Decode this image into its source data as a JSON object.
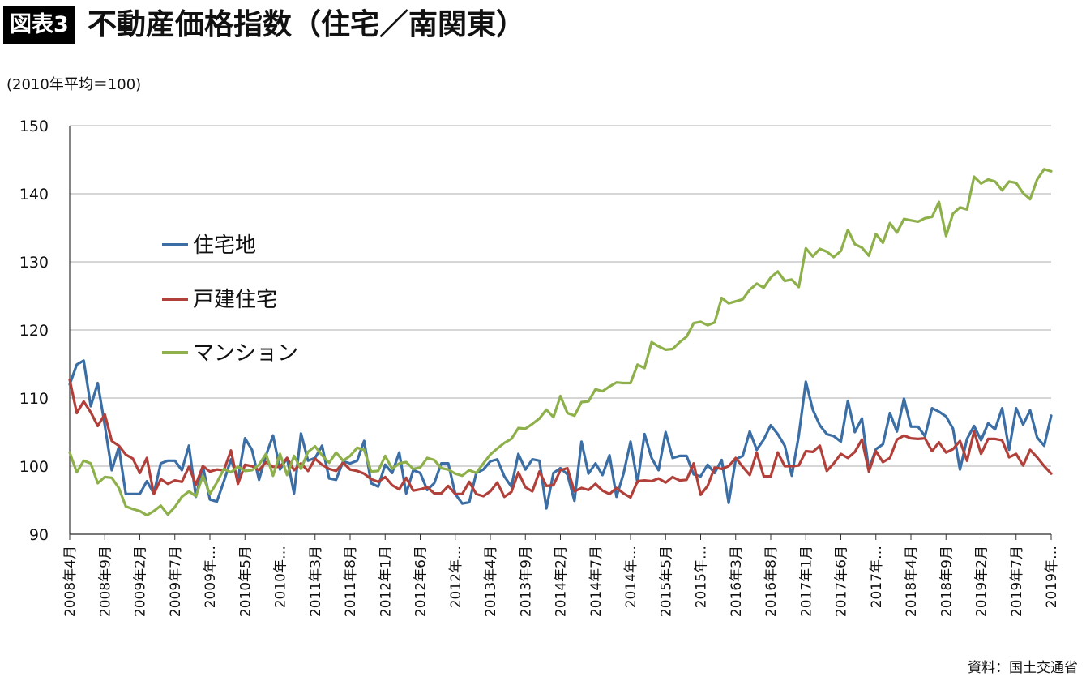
{
  "header": {
    "badge": "図表3",
    "title": "不動産価格指数（住宅／南関東）"
  },
  "footer": {
    "source": "資料：国土交通省"
  },
  "colors": {
    "series_1": "#3A6EA5",
    "series_2": "#B2403A",
    "series_3": "#8DB04A",
    "grid": "#bdbdbd"
  },
  "chart_data": {
    "type": "line",
    "title": "不動産価格指数（住宅／南関東）",
    "ylabel": "(2010年平均＝100)",
    "xlabel": "",
    "ylim": [
      90,
      150
    ],
    "yticks": [
      90,
      100,
      110,
      120,
      130,
      140,
      150
    ],
    "grid": true,
    "legend_position": "left-middle",
    "x_start": "2008年4月",
    "x_tick_labels": [
      "2008年4月",
      "2008年9月",
      "2009年2月",
      "2009年7月",
      "2009年…",
      "2010年5月",
      "2010年…",
      "2011年3月",
      "2011年8月",
      "2012年1月",
      "2012年6月",
      "2012年…",
      "2013年4月",
      "2013年9月",
      "2014年2月",
      "2014年7月",
      "2014年…",
      "2015年5月",
      "2015年…",
      "2016年3月",
      "2016年8月",
      "2017年1月",
      "2017年6月",
      "2017年…",
      "2018年4月",
      "2018年9月",
      "2019年2月",
      "2019年7月",
      "2019年…"
    ],
    "series": [
      {
        "name": "住宅地",
        "color": "#3A6EA5",
        "values": [
          112,
          114.9,
          115.5,
          108.8,
          112.2,
          106,
          99.4,
          102.8,
          95.9,
          95.9,
          95.9,
          97.8,
          96,
          100.4,
          100.8,
          100.8,
          99.4,
          103,
          95.5,
          100,
          95.1,
          94.8,
          97.8,
          101,
          98,
          104.1,
          102.4,
          98,
          101.6,
          104.5,
          99.5,
          101.2,
          96,
          104.8,
          100.8,
          101.2,
          103,
          98.2,
          98,
          100.7,
          100.4,
          100.8,
          103.7,
          97.5,
          97,
          100.2,
          99,
          102,
          96,
          99.4,
          99,
          96.5,
          97.5,
          100.4,
          100.4,
          95.9,
          94.5,
          94.7,
          99,
          99.5,
          100.7,
          101,
          98.5,
          97,
          101.8,
          99.5,
          101,
          100.8,
          93.8,
          99,
          99.7,
          98.8,
          94.9,
          103.6,
          98.9,
          100.4,
          98.7,
          101.6,
          95.5,
          98.9,
          103.6,
          97.6,
          104.7,
          101.2,
          99.4,
          105,
          101.2,
          101.5,
          101.5,
          98.8,
          98.5,
          100.2,
          99,
          100.9,
          94.6,
          101,
          101.5,
          105.1,
          102.4,
          103.9,
          106,
          104.7,
          103,
          98.6,
          104.5,
          112.4,
          108.3,
          106,
          104.7,
          104.4,
          103.6,
          109.6,
          105,
          107,
          99.5,
          102.5,
          103.2,
          107.8,
          105.1,
          109.9,
          105.8,
          105.8,
          104.4,
          108.5,
          108,
          107.3,
          105.5,
          99.5,
          104,
          105.9,
          103.8,
          106.3,
          105.4,
          108.5,
          102.4,
          108.5,
          106.1,
          108.2,
          104.2,
          103,
          107.4
        ]
      },
      {
        "name": "戸建住宅",
        "color": "#B2403A",
        "values": [
          112.7,
          107.8,
          109.5,
          107.9,
          105.9,
          107.6,
          103.7,
          103,
          101.7,
          101.1,
          99,
          101.2,
          95.9,
          98.1,
          97.4,
          97.9,
          97.7,
          99.9,
          97.3,
          100,
          99.2,
          99.5,
          99.4,
          102.3,
          97.4,
          100.2,
          100,
          99.4,
          100.6,
          99.9,
          99.9,
          101.2,
          99.4,
          100.4,
          99.3,
          101.1,
          100.2,
          99.6,
          99.3,
          100.5,
          99.5,
          99.3,
          98.9,
          98.1,
          97.7,
          98.4,
          97.2,
          96.6,
          98.3,
          96.4,
          96.6,
          96.9,
          96,
          96,
          97.1,
          95.9,
          95.9,
          97.7,
          95.9,
          95.6,
          96.3,
          97.6,
          95.5,
          96.2,
          99.1,
          96.9,
          96.3,
          99.2,
          97.1,
          97.2,
          99.4,
          99.7,
          96.3,
          96.8,
          96.5,
          97.4,
          96.4,
          95.9,
          96.8,
          96,
          95.4,
          97.8,
          97.9,
          97.8,
          98.2,
          97.6,
          98.4,
          97.9,
          98,
          100.4,
          95.8,
          97.1,
          99.8,
          99.6,
          100,
          101.2,
          99.9,
          98.7,
          102,
          98.5,
          98.5,
          102,
          100,
          100,
          100.1,
          102.2,
          102.1,
          103,
          99.3,
          100.4,
          101.8,
          101.2,
          102.1,
          103.9,
          99.2,
          102.2,
          100.6,
          101.2,
          103.9,
          104.5,
          104.1,
          104,
          104.1,
          102.2,
          103.5,
          102,
          102.5,
          103.7,
          100.8,
          105.1,
          101.8,
          104,
          104,
          103.8,
          101.3,
          101.8,
          100.1,
          102.4,
          101.3,
          100,
          98.9
        ]
      },
      {
        "name": "マンション",
        "color": "#8DB04A",
        "values": [
          102,
          99.1,
          100.8,
          100.4,
          97.5,
          98.4,
          98.3,
          96.8,
          94.1,
          93.7,
          93.4,
          92.8,
          93.4,
          94.2,
          92.9,
          94,
          95.5,
          96.3,
          95.6,
          98.6,
          95.9,
          97.6,
          99.6,
          99.1,
          99.9,
          99.3,
          99.4,
          100.2,
          101.8,
          98.6,
          101.8,
          98.7,
          101.5,
          99.6,
          102.1,
          102.9,
          101.6,
          100.5,
          102,
          100.8,
          101.5,
          102.7,
          102.4,
          99.2,
          99.3,
          101.5,
          99.6,
          100.4,
          100.6,
          99.6,
          99.8,
          101.2,
          100.9,
          99.7,
          99.5,
          98.9,
          98.6,
          99.4,
          99,
          100.4,
          101.7,
          102.6,
          103.4,
          104,
          105.6,
          105.5,
          106.2,
          107,
          108.3,
          107.2,
          110.3,
          107.8,
          107.4,
          109.4,
          109.5,
          111.3,
          111,
          111.7,
          112.3,
          112.2,
          112.2,
          114.9,
          114.4,
          118.2,
          117.6,
          117.1,
          117.2,
          118.2,
          119,
          121,
          121.2,
          120.7,
          121.1,
          124.7,
          123.9,
          124.2,
          124.5,
          125.9,
          126.8,
          126.2,
          127.7,
          128.6,
          127.2,
          127.4,
          126.3,
          132,
          130.8,
          131.9,
          131.5,
          130.7,
          131.6,
          134.7,
          132.6,
          132.1,
          130.9,
          134.1,
          132.8,
          135.7,
          134.3,
          136.3,
          136.1,
          135.9,
          136.4,
          136.6,
          138.8,
          133.8,
          137.1,
          138,
          137.7,
          142.5,
          141.5,
          142.1,
          141.8,
          140.5,
          141.8,
          141.6,
          140.1,
          139.2,
          142.1,
          143.6,
          143.3
        ]
      }
    ]
  }
}
